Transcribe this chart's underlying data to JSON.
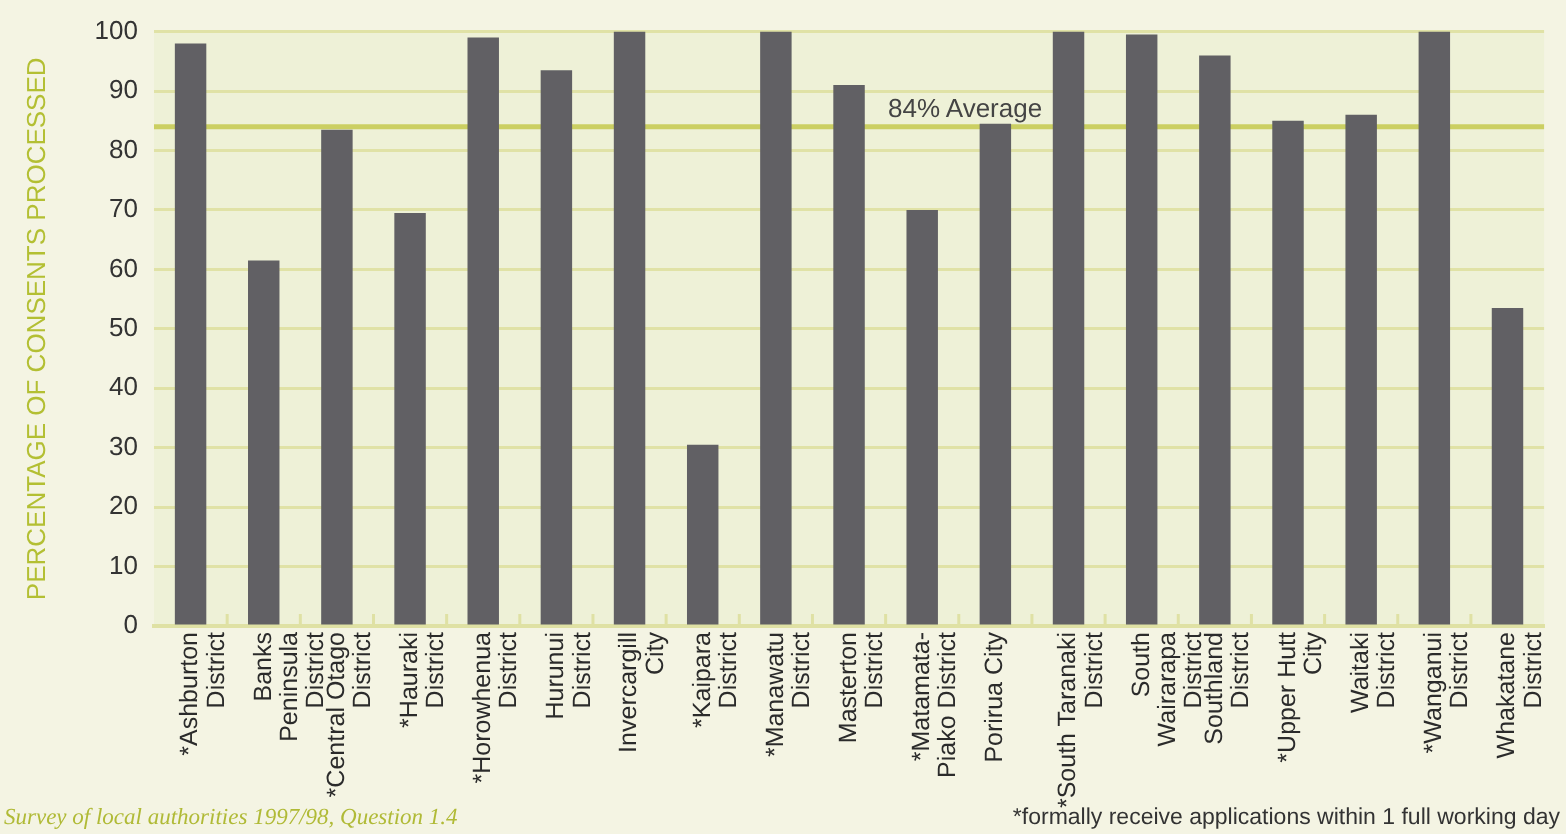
{
  "chart_data": {
    "type": "bar",
    "ylabel": "PERCENTAGE OF CONSENTS PROCESSED",
    "categories": [
      "*Ashburton\nDistrict",
      "Banks\nPeninsula\nDistrict",
      "*Central Otago\nDistrict",
      "*Hauraki\nDistrict",
      "*Horowhenua\nDistrict",
      "Hurunui\nDistrict",
      "Invercargill\nCity",
      "*Kaipara\nDistrict",
      "*Manawatu\nDistrict",
      "Masterton\nDistrict",
      "*Matamata-\nPiako District",
      "Porirua City",
      "*South Taranaki\nDistrict",
      "South\nWairarapa\nDistrict",
      "Southland\nDistrict",
      "*Upper Hutt\nCity",
      "Waitaki\nDistrict",
      "*Wanganui\nDistrict",
      "Whakatane\nDistrict"
    ],
    "values": [
      98,
      61.5,
      83.5,
      69.5,
      99,
      93.5,
      100,
      30.5,
      100,
      91,
      70,
      84.5,
      100,
      99.5,
      96,
      85,
      86,
      100,
      53.5
    ],
    "color": "#616064",
    "ylim": [
      0,
      100
    ],
    "yticks": [
      0,
      10,
      20,
      30,
      40,
      50,
      60,
      70,
      80,
      90,
      100
    ],
    "grid": "y",
    "ref_lines": [
      {
        "axis": "y",
        "value": 84,
        "label": "84% Average",
        "color": "#cbcf62"
      }
    ],
    "annotations": [
      "Survey of local authorities 1997/98, Question 1.4",
      "*formally receive applications within 1 full working day"
    ]
  }
}
